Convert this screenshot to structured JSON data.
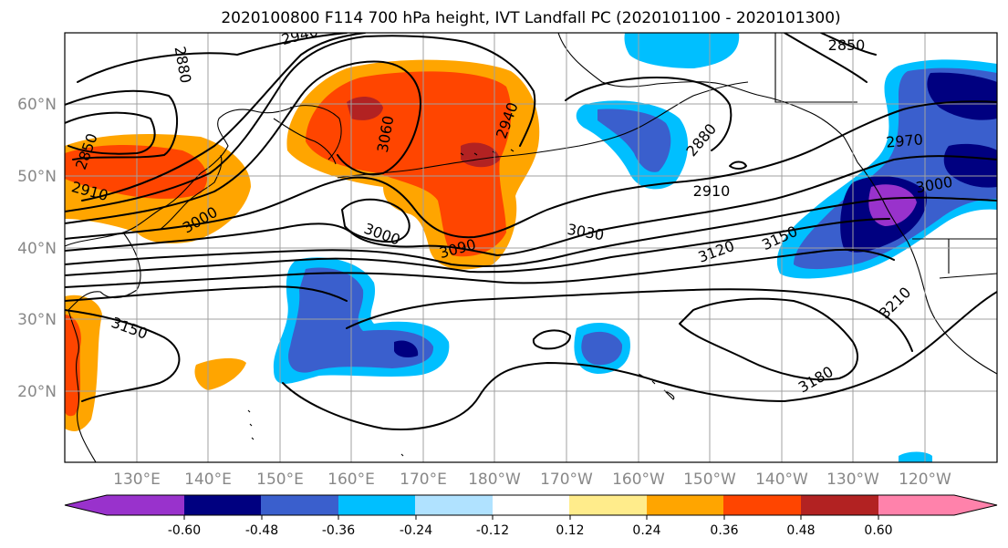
{
  "title": "2020100800 F114 700 hPa height, IVT Landfall PC (2020101100 - 2020101300)",
  "map": {
    "lon_labels": [
      "130°E",
      "140°E",
      "150°E",
      "160°E",
      "170°E",
      "180°W",
      "170°W",
      "160°W",
      "150°W",
      "140°W",
      "130°W",
      "120°W"
    ],
    "lat_labels": [
      "60°N",
      "50°N",
      "40°N",
      "30°N",
      "20°N"
    ],
    "contour_labels": [
      "2850",
      "2910",
      "2880",
      "2940",
      "3000",
      "3060",
      "2940",
      "3000",
      "3090",
      "3030",
      "2880",
      "2910",
      "3120",
      "3150",
      "2970",
      "3000",
      "2850",
      "3150",
      "3210",
      "3180"
    ],
    "gridlines": true
  },
  "colorbar": {
    "tick_labels": [
      "-0.60",
      "-0.48",
      "-0.36",
      "-0.24",
      "-0.12",
      "0.12",
      "0.24",
      "0.36",
      "0.48",
      "0.60"
    ],
    "colors": [
      "#9932cc",
      "#000080",
      "#3a5fcd",
      "#00bfff",
      "#b0e2ff",
      "#ffffff",
      "#ffec8b",
      "#ffa500",
      "#ff4500",
      "#b22222",
      "#ff82ab"
    ]
  }
}
